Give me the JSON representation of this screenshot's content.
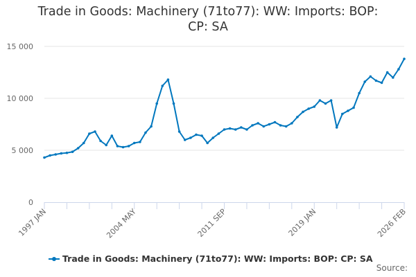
{
  "title_line1": "Trade in Goods: Machinery (71to77): WW: Imports: BOP:",
  "title_line2": "CP: SA",
  "legend_label": "Trade in Goods: Machinery (71to77): WW: Imports: BOP: CP: SA",
  "source_label": "Source:",
  "colors": {
    "series": "#0077be",
    "grid": "#e6e6e6",
    "axis": "#ccd6eb",
    "text": "#333333",
    "tick_text": "#666666"
  },
  "chart_data": {
    "type": "line",
    "title": "Trade in Goods: Machinery (71to77): WW: Imports: BOP: CP: SA",
    "xlabel": "",
    "ylabel": "",
    "ylim": [
      0,
      15000
    ],
    "yticks": [
      "0",
      "5 000",
      "10 000",
      "15 000"
    ],
    "xticks": [
      "1997 JAN",
      "2004 MAY",
      "2011 SEP",
      "2019 JAN",
      "2026 FEB"
    ],
    "grid": true,
    "legend_position": "bottom",
    "series": [
      {
        "name": "Trade in Goods: Machinery (71to77): WW: Imports: BOP: CP: SA",
        "x": [
          "1997 JAN",
          "1997 JUL",
          "1998 JAN",
          "1998 JUL",
          "1999 JAN",
          "1999 JUL",
          "2000 JAN",
          "2000 JUL",
          "2001 JAN",
          "2001 JUL",
          "2002 JAN",
          "2002 JUL",
          "2003 JAN",
          "2003 JUL",
          "2004 JAN",
          "2004 MAY",
          "2004 SEP",
          "2005 JAN",
          "2005 JUL",
          "2005 OCT",
          "2006 JAN",
          "2006 APR",
          "2006 JUN",
          "2006 AUG",
          "2006 OCT",
          "2007 JAN",
          "2007 JUL",
          "2008 JAN",
          "2008 JUL",
          "2009 JAN",
          "2009 JUL",
          "2010 JAN",
          "2010 JUL",
          "2011 JAN",
          "2011 SEP",
          "2012 JAN",
          "2012 JUL",
          "2013 JAN",
          "2013 JUL",
          "2014 JAN",
          "2014 JUL",
          "2015 JAN",
          "2015 JUL",
          "2016 JAN",
          "2016 JUL",
          "2017 JAN",
          "2017 JUL",
          "2018 JAN",
          "2018 JUL",
          "2019 JAN",
          "2019 JUL",
          "2020 JAN",
          "2020 APR",
          "2020 JUL",
          "2021 JAN",
          "2021 JUL",
          "2022 JAN",
          "2022 JUL",
          "2023 JAN",
          "2023 JUL",
          "2024 JAN",
          "2024 JUL",
          "2025 JAN",
          "2025 JUL",
          "2026 FEB"
        ],
        "values": [
          4300,
          4500,
          4600,
          4700,
          4750,
          4850,
          5200,
          5700,
          6600,
          6800,
          5900,
          5500,
          6400,
          5400,
          5300,
          5400,
          5700,
          5800,
          6700,
          7300,
          9500,
          11200,
          11800,
          9500,
          6800,
          6000,
          6200,
          6500,
          6400,
          5700,
          6200,
          6600,
          7000,
          7100,
          7000,
          7200,
          7000,
          7400,
          7600,
          7300,
          7500,
          7700,
          7400,
          7300,
          7600,
          8200,
          8700,
          9000,
          9200,
          9800,
          9500,
          9800,
          7200,
          8500,
          8800,
          9100,
          10500,
          11600,
          12100,
          11700,
          11500,
          12500,
          12000,
          12800,
          13800
        ]
      }
    ]
  }
}
